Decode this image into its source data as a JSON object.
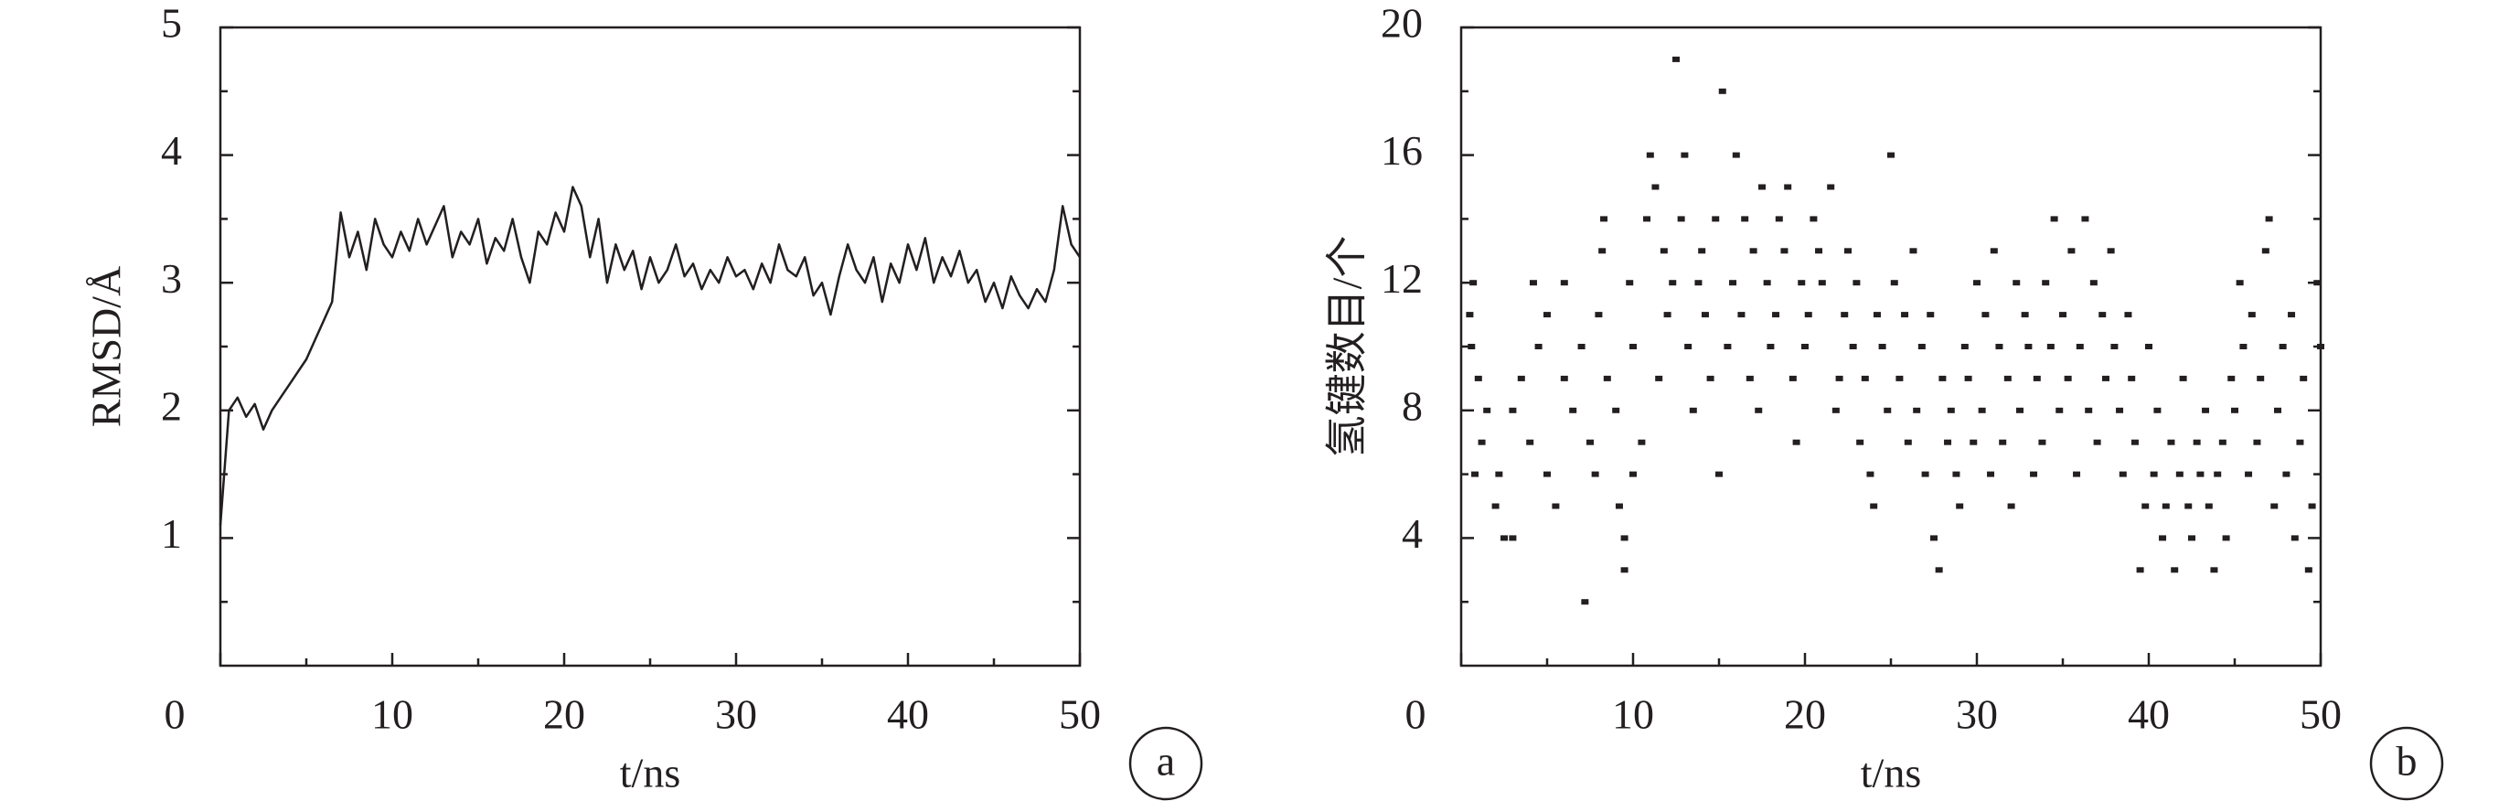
{
  "chart_data": [
    {
      "type": "line",
      "x_label": "t/ns",
      "y_label": "RMSD/Å",
      "panel": "a",
      "color": "#231f20",
      "x": [
        0,
        0.5,
        1,
        1.5,
        2,
        2.5,
        3,
        3.5,
        4,
        4.5,
        5,
        5.5,
        6,
        6.5,
        7,
        7.5,
        8,
        8.5,
        9,
        9.5,
        10,
        10.5,
        11,
        11.5,
        12,
        12.5,
        13,
        13.5,
        14,
        14.5,
        15,
        15.5,
        16,
        16.5,
        17,
        17.5,
        18,
        18.5,
        19,
        19.5,
        20,
        20.5,
        21,
        21.5,
        22,
        22.5,
        23,
        23.5,
        24,
        24.5,
        25,
        25.5,
        26,
        26.5,
        27,
        27.5,
        28,
        28.5,
        29,
        29.5,
        30,
        30.5,
        31,
        31.5,
        32,
        32.5,
        33,
        33.5,
        34,
        34.5,
        35,
        35.5,
        36,
        36.5,
        37,
        37.5,
        38,
        38.5,
        39,
        39.5,
        40,
        40.5,
        41,
        41.5,
        42,
        42.5,
        43,
        43.5,
        44,
        44.5,
        45,
        45.5,
        46,
        46.5,
        47,
        47.5,
        48,
        48.5,
        49,
        49.5,
        50
      ],
      "values": [
        1.1,
        2.0,
        2.1,
        1.95,
        2.05,
        1.85,
        2.0,
        2.1,
        2.2,
        2.3,
        2.4,
        2.55,
        2.7,
        2.85,
        3.55,
        3.2,
        3.4,
        3.1,
        3.5,
        3.3,
        3.2,
        3.4,
        3.25,
        3.5,
        3.3,
        3.45,
        3.6,
        3.2,
        3.4,
        3.3,
        3.5,
        3.15,
        3.35,
        3.25,
        3.5,
        3.2,
        3.0,
        3.4,
        3.3,
        3.55,
        3.4,
        3.75,
        3.6,
        3.2,
        3.5,
        3.0,
        3.3,
        3.1,
        3.25,
        2.95,
        3.2,
        3.0,
        3.1,
        3.3,
        3.05,
        3.15,
        2.95,
        3.1,
        3.0,
        3.2,
        3.05,
        3.1,
        2.95,
        3.15,
        3.0,
        3.3,
        3.1,
        3.05,
        3.2,
        2.9,
        3.0,
        2.75,
        3.05,
        3.3,
        3.1,
        3.0,
        3.2,
        2.85,
        3.15,
        3.0,
        3.3,
        3.1,
        3.35,
        3.0,
        3.2,
        3.05,
        3.25,
        3.0,
        3.1,
        2.85,
        3.0,
        2.8,
        3.05,
        2.9,
        2.8,
        2.95,
        2.85,
        3.1,
        3.6,
        3.3,
        3.2
      ],
      "xlim": [
        0,
        50
      ],
      "ylim": [
        0,
        5
      ],
      "xticks": [
        0,
        10,
        20,
        30,
        40,
        50
      ],
      "yticks": [
        1,
        2,
        3,
        4,
        5
      ],
      "xminorticks": [
        5,
        15,
        25,
        35,
        45
      ],
      "yminorticks": [
        0.5,
        1.5,
        2.5,
        3.5,
        4.5
      ]
    },
    {
      "type": "scatter",
      "x_label": "t/ns",
      "y_label": "氢键数目/个",
      "panel": "b",
      "color": "#231f20",
      "x": [
        0.5,
        0.7,
        0.6,
        1,
        1.5,
        0.8,
        1.2,
        2,
        2.5,
        3,
        2.2,
        3,
        3.5,
        4,
        4.2,
        4.5,
        5,
        5,
        5.5,
        6,
        6,
        6.5,
        7,
        7.2,
        7.5,
        7.8,
        8,
        8.2,
        8.3,
        8.5,
        9,
        9.2,
        9.5,
        9.5,
        9.8,
        10,
        10,
        10.5,
        10.8,
        11,
        11.3,
        11.5,
        11.8,
        12,
        12.3,
        12.5,
        12.8,
        13,
        13.2,
        13.5,
        13.8,
        14,
        14.2,
        14.5,
        14.8,
        15,
        15.2,
        15.5,
        15.8,
        16,
        16.3,
        16.5,
        16.8,
        17,
        17.3,
        17.5,
        17.8,
        18,
        18.3,
        18.5,
        18.8,
        19,
        19.3,
        19.5,
        19.8,
        20,
        20.2,
        20.5,
        20.8,
        21,
        21.5,
        21.8,
        22,
        22.3,
        22.5,
        22.8,
        23,
        23.2,
        23.5,
        23.8,
        24,
        24.2,
        24.5,
        24.8,
        25,
        25.2,
        25.5,
        25.8,
        26,
        26.3,
        26.5,
        26.8,
        27,
        27.3,
        27.5,
        27.8,
        28,
        28.3,
        28.5,
        28.8,
        29,
        29.3,
        29.5,
        29.8,
        30,
        30.3,
        30.5,
        30.8,
        31,
        31.3,
        31.5,
        31.8,
        32,
        32.3,
        32.5,
        32.8,
        33,
        33.3,
        33.5,
        33.8,
        34,
        34.3,
        34.5,
        34.8,
        35,
        35.3,
        35.5,
        35.8,
        36,
        36.3,
        36.5,
        36.8,
        37,
        37.3,
        37.5,
        37.8,
        38,
        38.3,
        38.5,
        38.8,
        39,
        39.2,
        39.5,
        39.8,
        40,
        40.3,
        40.5,
        40.8,
        41,
        41.3,
        41.5,
        41.8,
        42,
        42.3,
        42.5,
        42.8,
        43,
        43.3,
        43.5,
        43.8,
        44,
        44.3,
        44.5,
        44.8,
        45,
        45.3,
        45.5,
        45.8,
        46,
        46.3,
        46.5,
        46.8,
        47,
        47.3,
        47.5,
        47.8,
        48,
        48.3,
        48.5,
        48.8,
        49,
        49.3,
        49.5,
        49.8,
        50
      ],
      "values": [
        11,
        12,
        10,
        9,
        8,
        6,
        7,
        5,
        4,
        4,
        6,
        8,
        9,
        7,
        12,
        10,
        11,
        6,
        5,
        9,
        12,
        8,
        10,
        2,
        7,
        6,
        11,
        13,
        14,
        9,
        8,
        5,
        3,
        4,
        12,
        6,
        10,
        7,
        14,
        16,
        15,
        9,
        13,
        11,
        12,
        19,
        14,
        16,
        10,
        8,
        12,
        13,
        11,
        9,
        14,
        6,
        18,
        10,
        12,
        16,
        11,
        14,
        9,
        13,
        8,
        15,
        12,
        10,
        11,
        14,
        13,
        15,
        9,
        7,
        12,
        10,
        11,
        14,
        13,
        12,
        15,
        8,
        9,
        11,
        13,
        10,
        12,
        7,
        9,
        6,
        5,
        11,
        10,
        8,
        16,
        12,
        9,
        11,
        7,
        13,
        8,
        10,
        6,
        11,
        4,
        3,
        9,
        7,
        8,
        6,
        5,
        10,
        9,
        7,
        12,
        8,
        11,
        6,
        13,
        10,
        7,
        9,
        5,
        12,
        8,
        11,
        10,
        6,
        9,
        7,
        12,
        10,
        14,
        8,
        11,
        9,
        13,
        6,
        10,
        14,
        8,
        12,
        7,
        11,
        9,
        13,
        10,
        8,
        6,
        11,
        9,
        7,
        3,
        5,
        10,
        6,
        8,
        4,
        5,
        7,
        3,
        6,
        9,
        5,
        4,
        7,
        6,
        8,
        5,
        3,
        6,
        7,
        4,
        9,
        8,
        12,
        10,
        6,
        11,
        7,
        9,
        13,
        14,
        5,
        8,
        10,
        6,
        11,
        4,
        7,
        9,
        3,
        5,
        12,
        10
      ],
      "xlim": [
        0,
        50
      ],
      "ylim": [
        0,
        20
      ],
      "xticks": [
        0,
        10,
        20,
        30,
        40,
        50
      ],
      "yticks": [
        4,
        8,
        12,
        16,
        20
      ],
      "xminorticks": [
        5,
        15,
        25,
        35,
        45
      ],
      "yminorticks": [
        2,
        6,
        10,
        14,
        18
      ]
    }
  ]
}
